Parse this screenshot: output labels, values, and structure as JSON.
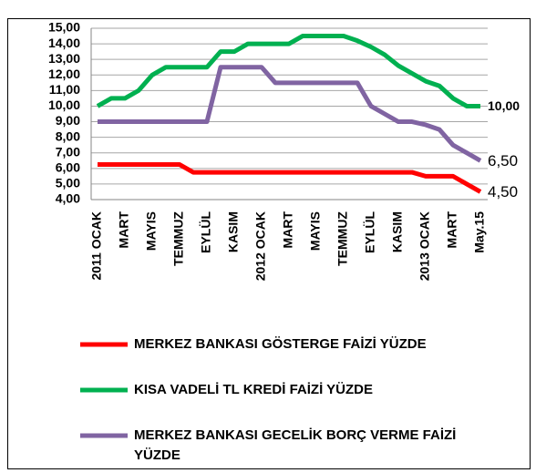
{
  "chart_data": {
    "type": "line",
    "categories": [
      "2011 OCAK",
      null,
      "MART",
      null,
      "MAYIS",
      null,
      "TEMMUZ",
      null,
      "EYLÜL",
      null,
      "KASIM",
      null,
      "2012 OCAK",
      null,
      "MART",
      null,
      "MAYIS",
      null,
      "TEMMUZ",
      null,
      "EYLÜL",
      null,
      "KASIM",
      null,
      "2013 OCAK",
      null,
      "MART",
      null,
      "May.15"
    ],
    "series": [
      {
        "name": "MERKEZ BANKASI GÖSTERGE FAİZİ YÜZDE",
        "color": "#ff0000",
        "end_label": "4,50",
        "values": [
          6.25,
          6.25,
          6.25,
          6.25,
          6.25,
          6.25,
          6.25,
          5.75,
          5.75,
          5.75,
          5.75,
          5.75,
          5.75,
          5.75,
          5.75,
          5.75,
          5.75,
          5.75,
          5.75,
          5.75,
          5.75,
          5.75,
          5.75,
          5.75,
          5.5,
          5.5,
          5.5,
          5,
          4.5
        ]
      },
      {
        "name": "KISA VADELİ TL KREDİ FAİZİ YÜZDE",
        "color": "#00b050",
        "end_label": "10,00",
        "values": [
          10,
          10.5,
          10.5,
          11,
          12,
          12.5,
          12.5,
          12.5,
          12.5,
          13.5,
          13.5,
          14,
          14,
          14,
          14,
          14.5,
          14.5,
          14.5,
          14.5,
          14.2,
          13.8,
          13.3,
          12.6,
          12.1,
          11.6,
          11.3,
          10.5,
          10,
          10
        ]
      },
      {
        "name": "MERKEZ BANKASI GECELİK BORÇ VERME FAİZİ YÜZDE",
        "color": "#8064a2",
        "end_label": "6,50",
        "values": [
          9,
          9,
          9,
          9,
          9,
          9,
          9,
          9,
          9,
          12.5,
          12.5,
          12.5,
          12.5,
          11.5,
          11.5,
          11.5,
          11.5,
          11.5,
          11.5,
          11.5,
          10,
          9.5,
          9,
          9,
          8.8,
          8.5,
          7.5,
          7,
          6.5
        ]
      }
    ],
    "ylim": [
      4,
      15
    ],
    "yticks": [
      {
        "value": 4,
        "label": "4,00"
      },
      {
        "value": 5,
        "label": "5,00"
      },
      {
        "value": 6,
        "label": "6,00"
      },
      {
        "value": 7,
        "label": "7,00"
      },
      {
        "value": 8,
        "label": "8,00"
      },
      {
        "value": 9,
        "label": "9,00"
      },
      {
        "value": 10,
        "label": "10,00"
      },
      {
        "value": 11,
        "label": "11,00"
      },
      {
        "value": 12,
        "label": "12,00"
      },
      {
        "value": 13,
        "label": "13,00"
      },
      {
        "value": 14,
        "label": "14,00"
      },
      {
        "value": 15,
        "label": "15,00"
      }
    ],
    "grid": true,
    "legend": "bottom"
  }
}
